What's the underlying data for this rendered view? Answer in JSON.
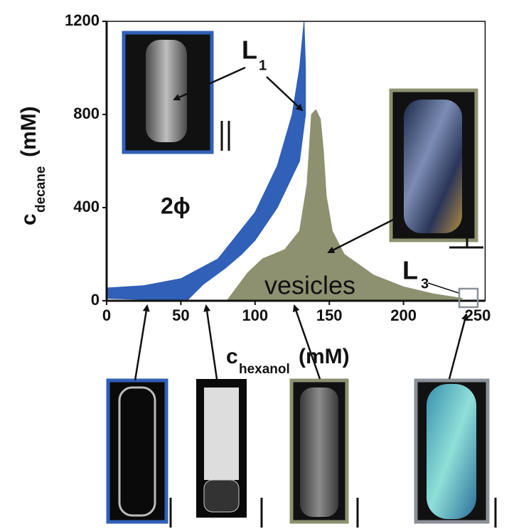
{
  "chart_data": {
    "type": "area",
    "x_label": {
      "main": "c",
      "sub": "hexanol",
      "unit": "(mM)"
    },
    "y_label": {
      "main": "c",
      "sub": "decane",
      "unit": "(mM)"
    },
    "xlim": [
      0,
      255
    ],
    "ylim": [
      0,
      1200
    ],
    "xticks": [
      0,
      50,
      100,
      150,
      200,
      250
    ],
    "yticks": [
      0,
      400,
      800,
      1200
    ],
    "series": [
      {
        "color": "#3060b8",
        "x": [
          0,
          25,
          50,
          75,
          100,
          115,
          125,
          130,
          133,
          134,
          134,
          130,
          115,
          100,
          91,
          80,
          65,
          54,
          0
        ],
        "y": [
          55,
          65,
          95,
          180,
          380,
          580,
          800,
          1000,
          1200,
          1000,
          800,
          600,
          400,
          260,
          200,
          140,
          70,
          0,
          10
        ]
      },
      {
        "color": "#8e9170",
        "x": [
          81,
          95,
          105,
          120,
          130,
          135,
          138,
          141,
          144,
          146,
          148,
          152,
          160,
          180,
          200,
          220,
          240,
          235
        ],
        "y": [
          0,
          120,
          180,
          220,
          300,
          500,
          800,
          820,
          780,
          650,
          450,
          300,
          200,
          110,
          60,
          30,
          10,
          0
        ]
      }
    ],
    "annotations": [
      {
        "text": "L",
        "sub": "1"
      },
      {
        "text": "2ϕ"
      },
      {
        "text": "vesicles"
      },
      {
        "text": "L",
        "sub": "3"
      }
    ]
  }
}
